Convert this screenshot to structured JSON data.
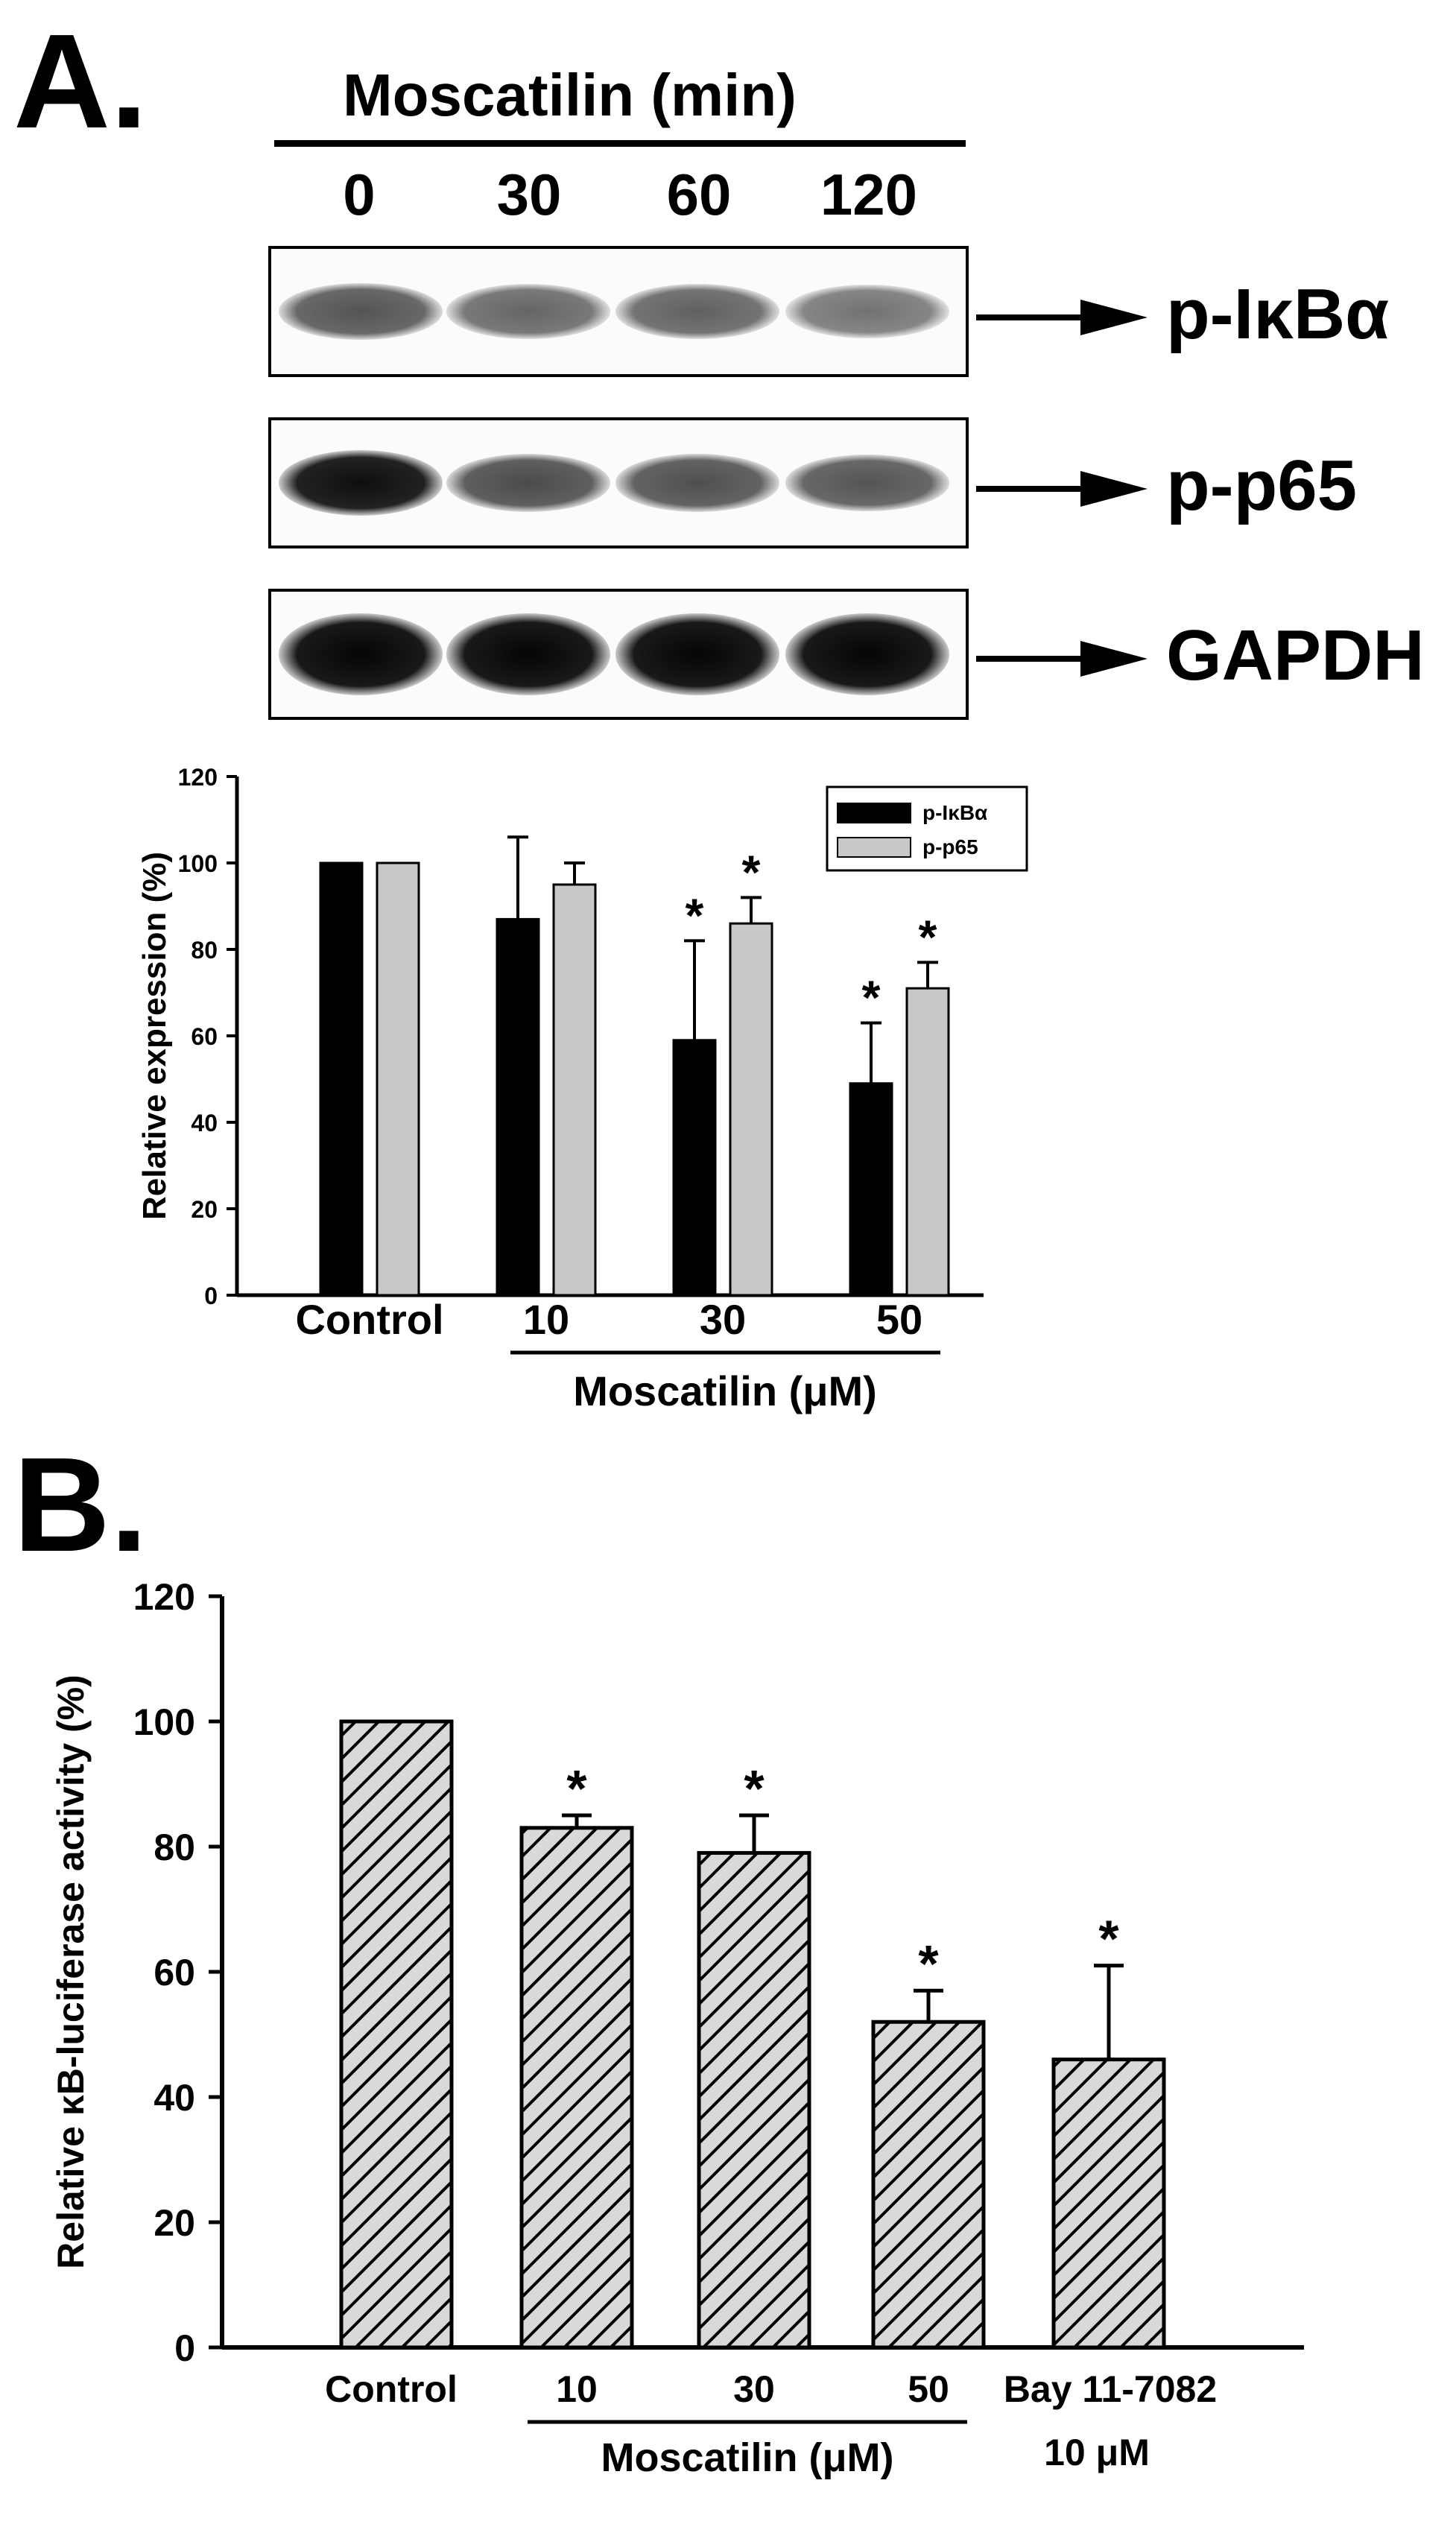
{
  "panel_a": {
    "label": "A.",
    "header": "Moscatilin (min)",
    "lanes": [
      "0",
      "30",
      "60",
      "120"
    ],
    "blots": [
      {
        "label": "p-IκBα",
        "intensity": [
          0.55,
          0.45,
          0.48,
          0.38
        ]
      },
      {
        "label": "p-p65",
        "intensity": [
          0.95,
          0.6,
          0.58,
          0.55
        ]
      },
      {
        "label": "GAPDH",
        "intensity": [
          1.0,
          1.0,
          1.0,
          1.0
        ]
      }
    ]
  },
  "panel_b": {
    "label": "B."
  },
  "chart_data": [
    {
      "type": "bar",
      "ylabel": "Relative expression (%)",
      "xlabel": "Moscatilin (μM)",
      "categories": [
        "Control",
        "10",
        "30",
        "50"
      ],
      "ylim": [
        0,
        120
      ],
      "yticks": [
        "0",
        "20",
        "40",
        "60",
        "80",
        "100",
        "120"
      ],
      "series": [
        {
          "name": "p-IκBα",
          "color": "#000000",
          "values": [
            100,
            87,
            59,
            49
          ],
          "errors": [
            0,
            19,
            23,
            14
          ],
          "significant": [
            false,
            false,
            true,
            true
          ]
        },
        {
          "name": "p-p65",
          "color": "#c8c8c8",
          "values": [
            100,
            95,
            86,
            71
          ],
          "errors": [
            0,
            5,
            6,
            6
          ],
          "significant": [
            false,
            false,
            true,
            true
          ]
        }
      ],
      "significance_mark": "*",
      "legend_position": "top-right",
      "bracket_label": "Moscatilin (μM)"
    },
    {
      "type": "bar",
      "ylabel": "Relative κB-luciferase activity (%)",
      "categories": [
        "Control",
        "10",
        "30",
        "50",
        "Bay 11-7082"
      ],
      "category_sublabels": [
        "",
        "",
        "",
        "",
        "10 μM"
      ],
      "ylim": [
        0,
        120
      ],
      "yticks": [
        "0",
        "20",
        "40",
        "60",
        "80",
        "100",
        "120"
      ],
      "series": [
        {
          "values": [
            100,
            83,
            79,
            52,
            46
          ],
          "errors": [
            0,
            2,
            6,
            5,
            15
          ],
          "significant": [
            false,
            true,
            true,
            true,
            true
          ]
        }
      ],
      "fill": "hatched",
      "significance_mark": "*",
      "bracket_label": "Moscatilin (μM)"
    }
  ]
}
